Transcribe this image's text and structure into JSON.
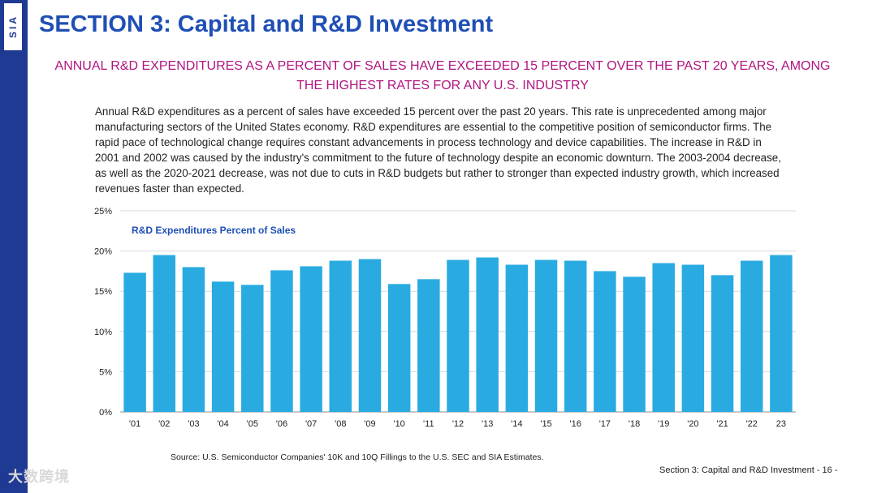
{
  "brand": {
    "logo": "SIA",
    "color": "#1f3a93"
  },
  "header": {
    "title": "SECTION 3: Capital and R&D Investment",
    "subtitle": "ANNUAL R&D EXPENDITURES AS A PERCENT OF SALES HAVE EXCEEDED 15 PERCENT OVER THE PAST 20 YEARS, AMONG THE HIGHEST RATES FOR ANY U.S. INDUSTRY"
  },
  "body": {
    "paragraph": "Annual R&D expenditures as a percent of sales have exceeded 15 percent over the past 20 years. This rate is unprecedented among major manufacturing sectors of the United States economy. R&D expenditures are essential to the competitive position of semiconductor firms. The rapid pace of technological change requires constant advancements in process technology and device capabilities. The increase in R&D in 2001 and 2002 was caused by the industry's commitment to the future of technology despite an economic downturn. The 2003-2004 decrease, as well as the 2020-2021 decrease, was not due to cuts in R&D budgets but rather to stronger than expected industry growth, which increased revenues faster than expected."
  },
  "chart_data": {
    "type": "bar",
    "title": "R&D Expenditures Percent of Sales",
    "categories": [
      "'01",
      "'02",
      "'03",
      "'04",
      "'05",
      "'06",
      "'07",
      "'08",
      "'09",
      "'10",
      "'11",
      "'12",
      "'13",
      "'14",
      "'15",
      "'16",
      "'17",
      "'18",
      "'19",
      "'20",
      "'21",
      "'22",
      "23"
    ],
    "values": [
      17.3,
      19.5,
      18.0,
      16.2,
      15.8,
      17.6,
      18.1,
      18.8,
      19.0,
      15.9,
      16.5,
      18.9,
      19.2,
      18.3,
      18.9,
      18.8,
      17.5,
      16.8,
      18.5,
      18.3,
      17.0,
      18.8,
      19.5
    ],
    "yticks": [
      "0%",
      "5%",
      "10%",
      "15%",
      "20%",
      "25%"
    ],
    "ylim": [
      0,
      25
    ],
    "bar_color": "#29abe2",
    "grid": true,
    "xlabel": "",
    "ylabel": ""
  },
  "source": "Source: U.S. Semiconductor Companies' 10K and 10Q Fillings to the U.S. SEC and SIA Estimates.",
  "footer": "Section 3: Capital and R&D Investment  - 16 -",
  "watermark": "大数跨境"
}
